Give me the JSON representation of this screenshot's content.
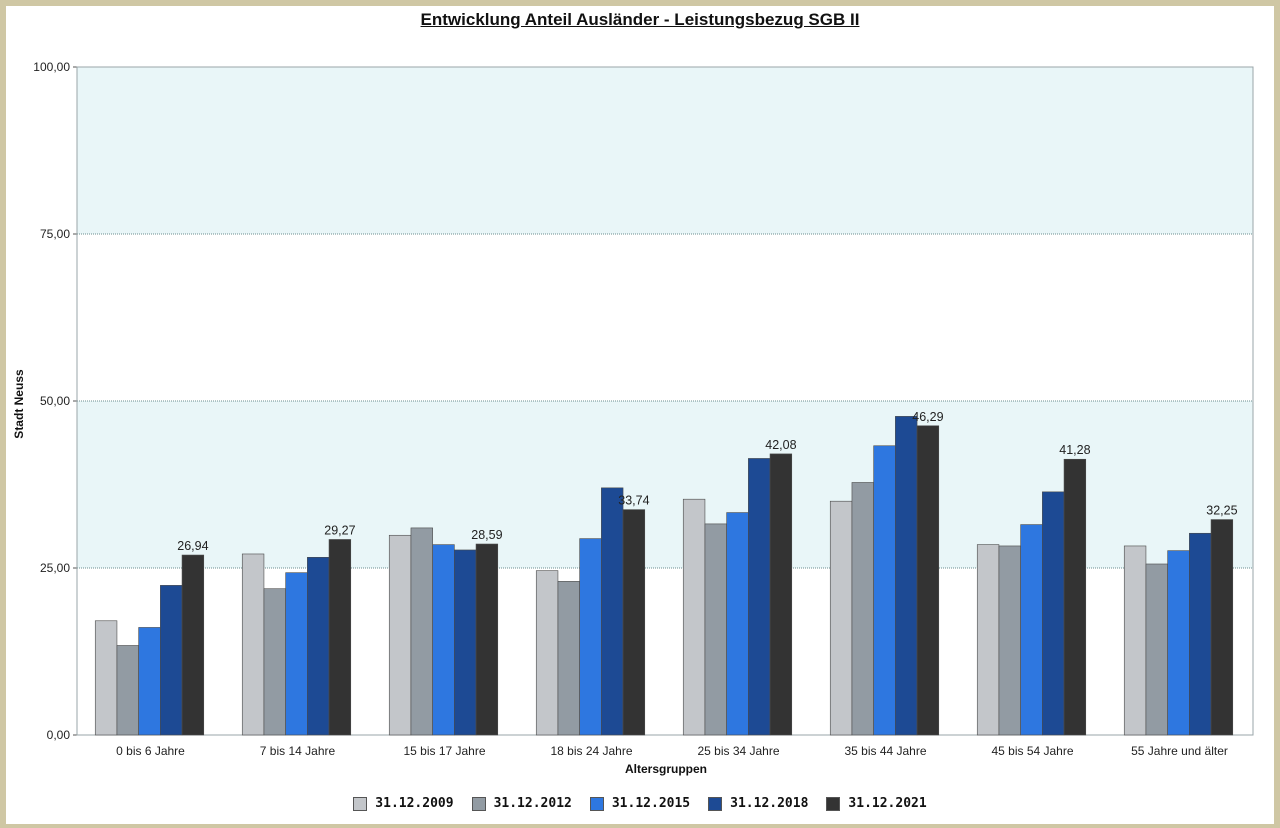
{
  "chart_data": {
    "type": "bar",
    "title": "Entwicklung Anteil Ausländer - Leistungsbezug SGB II",
    "xlabel": "Altersgruppen",
    "ylabel": "Stadt Neuss",
    "ylim": [
      0,
      100
    ],
    "yticks": [
      "0,00",
      "25,00",
      "50,00",
      "75,00",
      "100,00"
    ],
    "grid": true,
    "legend_position": "bottom",
    "categories": [
      "0 bis 6 Jahre",
      "7 bis 14 Jahre",
      "15 bis 17 Jahre",
      "18 bis 24 Jahre",
      "25 bis 34 Jahre",
      "35 bis 44 Jahre",
      "45 bis 54 Jahre",
      "55 Jahre und älter"
    ],
    "series": [
      {
        "name": "31.12.2009",
        "color": "#c3c6ca",
        "values": [
          17.1,
          27.1,
          29.9,
          24.6,
          35.3,
          35.0,
          28.5,
          28.3
        ]
      },
      {
        "name": "31.12.2012",
        "color": "#929ba3",
        "values": [
          13.4,
          21.9,
          31.0,
          23.0,
          31.6,
          37.8,
          28.3,
          25.6
        ]
      },
      {
        "name": "31.12.2015",
        "color": "#2e77e0",
        "values": [
          16.1,
          24.3,
          28.5,
          29.4,
          33.3,
          43.3,
          31.5,
          27.6
        ]
      },
      {
        "name": "31.12.2018",
        "color": "#1d4a94",
        "values": [
          22.4,
          26.6,
          27.7,
          37.0,
          41.4,
          47.7,
          36.4,
          30.2
        ]
      },
      {
        "name": "31.12.2021",
        "color": "#333333",
        "values": [
          26.94,
          29.27,
          28.59,
          33.74,
          42.08,
          46.29,
          41.28,
          32.25
        ]
      }
    ],
    "data_labels": [
      "26,94",
      "29,27",
      "28,59",
      "33,74",
      "42,08",
      "46,29",
      "41,28",
      "32,25"
    ],
    "band_color": "#e9f6f8",
    "grid_color": "#6b8f8f"
  }
}
